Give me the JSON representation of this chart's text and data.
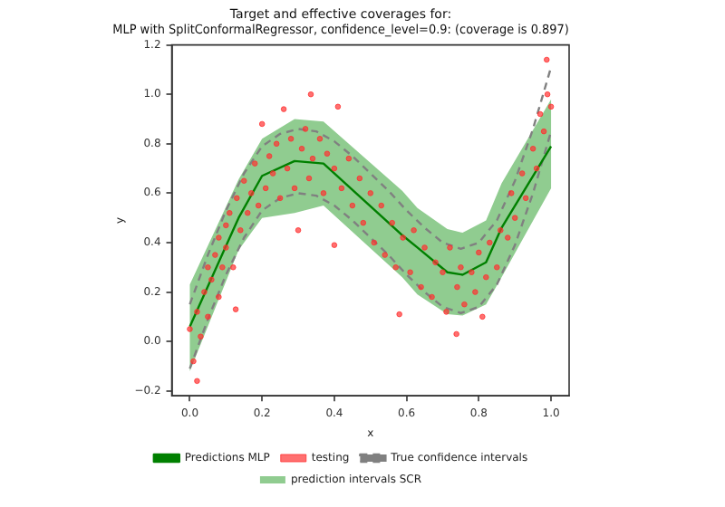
{
  "chart_data": {
    "type": "line",
    "title": "Target and effective coverages for:\nMLP with SplitConformalRegressor, confidence_level=0.9: (coverage is 0.897)",
    "xlabel": "x",
    "ylabel": "y",
    "xlim": [
      -0.05,
      1.05
    ],
    "xticks": [
      {
        "value": 0,
        "label": "0.0"
      },
      {
        "value": 0.2,
        "label": "0.2"
      },
      {
        "value": 0.4,
        "label": "0.4"
      },
      {
        "value": 0.6,
        "label": "0.6"
      },
      {
        "value": 0.8,
        "label": "0.8"
      },
      {
        "value": 1,
        "label": "1.0"
      }
    ],
    "ylim": [
      -0.22,
      1.2
    ],
    "yticks": [
      {
        "value": -0.2,
        "label": "−0.2"
      },
      {
        "value": 0,
        "label": "0.0"
      },
      {
        "value": 0.2,
        "label": "0.2"
      },
      {
        "value": 0.4,
        "label": "0.4"
      },
      {
        "value": 0.6,
        "label": "0.6"
      },
      {
        "value": 0.8,
        "label": "0.8"
      },
      {
        "value": 1,
        "label": "1.0"
      },
      {
        "value": 1.2,
        "label": "1.2"
      }
    ],
    "grid": false,
    "legend": "bottom",
    "series": [
      {
        "name": "Predictions MLP",
        "color": "#008000",
        "x": [
          0,
          0.135,
          0.2,
          0.29,
          0.37,
          0.588,
          0.63,
          0.713,
          0.755,
          0.82,
          0.863,
          1.0
        ],
        "values": [
          0.06,
          0.5,
          0.67,
          0.73,
          0.72,
          0.43,
          0.38,
          0.28,
          0.27,
          0.32,
          0.46,
          0.79
        ]
      },
      {
        "type": "scatter",
        "name": "testing",
        "color": "#ff3030",
        "marker": "circle",
        "x": [
          0,
          0.01,
          0.02,
          0.02,
          0.03,
          0.04,
          0.05,
          0.05,
          0.06,
          0.07,
          0.08,
          0.08,
          0.09,
          0.1,
          0.1,
          0.11,
          0.12,
          0.127,
          0.13,
          0.14,
          0.15,
          0.16,
          0.17,
          0.18,
          0.19,
          0.2,
          0.21,
          0.22,
          0.23,
          0.24,
          0.25,
          0.26,
          0.27,
          0.28,
          0.29,
          0.3,
          0.31,
          0.32,
          0.33,
          0.335,
          0.34,
          0.36,
          0.37,
          0.38,
          0.4,
          0.4,
          0.41,
          0.42,
          0.44,
          0.45,
          0.47,
          0.48,
          0.5,
          0.51,
          0.53,
          0.54,
          0.56,
          0.57,
          0.58,
          0.59,
          0.61,
          0.62,
          0.64,
          0.65,
          0.67,
          0.68,
          0.7,
          0.71,
          0.72,
          0.738,
          0.74,
          0.75,
          0.76,
          0.78,
          0.79,
          0.8,
          0.81,
          0.82,
          0.83,
          0.85,
          0.86,
          0.88,
          0.89,
          0.9,
          0.92,
          0.93,
          0.95,
          0.96,
          0.97,
          0.98,
          0.988,
          0.99,
          1.0
        ],
        "values": [
          0.05,
          -0.08,
          -0.16,
          0.12,
          0.02,
          0.2,
          0.3,
          0.1,
          0.25,
          0.35,
          0.18,
          0.42,
          0.3,
          0.47,
          0.38,
          0.52,
          0.3,
          0.13,
          0.58,
          0.45,
          0.65,
          0.52,
          0.6,
          0.72,
          0.55,
          0.88,
          0.62,
          0.75,
          0.68,
          0.8,
          0.58,
          0.94,
          0.7,
          0.82,
          0.62,
          0.45,
          0.78,
          0.86,
          0.66,
          1.0,
          0.74,
          0.82,
          0.6,
          0.76,
          0.39,
          0.7,
          0.95,
          0.62,
          0.74,
          0.55,
          0.66,
          0.48,
          0.6,
          0.4,
          0.55,
          0.35,
          0.48,
          0.3,
          0.11,
          0.42,
          0.28,
          0.45,
          0.22,
          0.38,
          0.18,
          0.32,
          0.28,
          0.12,
          0.38,
          0.03,
          0.22,
          0.3,
          0.15,
          0.28,
          0.2,
          0.36,
          0.1,
          0.26,
          0.4,
          0.3,
          0.45,
          0.42,
          0.6,
          0.5,
          0.68,
          0.58,
          0.78,
          0.7,
          0.92,
          0.85,
          1.14,
          1.0,
          0.95
        ]
      },
      {
        "name": "True confidence intervals",
        "color": "#808080",
        "line_style": "dashed",
        "x": [
          0,
          0.05,
          0.1,
          0.15,
          0.2,
          0.25,
          0.3,
          0.35,
          0.4,
          0.45,
          0.5,
          0.55,
          0.6,
          0.65,
          0.7,
          0.75,
          0.8,
          0.85,
          0.9,
          0.95,
          1.0
        ],
        "values": [
          0.15,
          0.35,
          0.53,
          0.68,
          0.79,
          0.84,
          0.86,
          0.85,
          0.81,
          0.75,
          0.68,
          0.61,
          0.53,
          0.46,
          0.4,
          0.375,
          0.4,
          0.49,
          0.65,
          0.86,
          1.11
        ]
      },
      {
        "color": "#808080",
        "line_style": "dashed",
        "x": [
          0,
          0.05,
          0.1,
          0.15,
          0.2,
          0.25,
          0.3,
          0.35,
          0.4,
          0.45,
          0.5,
          0.55,
          0.6,
          0.65,
          0.7,
          0.75,
          0.8,
          0.85,
          0.9,
          0.95,
          1.0
        ],
        "values": [
          -0.11,
          0.09,
          0.27,
          0.42,
          0.53,
          0.58,
          0.6,
          0.59,
          0.55,
          0.49,
          0.42,
          0.35,
          0.27,
          0.2,
          0.14,
          0.115,
          0.14,
          0.23,
          0.39,
          0.6,
          0.85
        ]
      },
      {
        "type": "line",
        "name": "prediction intervals SCR",
        "color": "#90cc90",
        "x": [
          0,
          0.135,
          0.2,
          0.29,
          0.37,
          0.588,
          0.63,
          0.713,
          0.755,
          0.82,
          0.863,
          1.0
        ],
        "values": [
          null,
          null,
          null,
          null,
          null,
          null,
          null,
          null,
          null,
          null,
          null,
          null
        ],
        "upper": [
          0.23,
          0.655,
          0.82,
          0.9,
          0.89,
          0.61,
          0.54,
          0.455,
          0.44,
          0.49,
          0.64,
          0.98
        ],
        "lower": [
          -0.12,
          0.37,
          0.5,
          0.52,
          0.55,
          0.26,
          0.19,
          0.11,
          0.105,
          0.15,
          0.26,
          0.62
        ]
      }
    ]
  }
}
